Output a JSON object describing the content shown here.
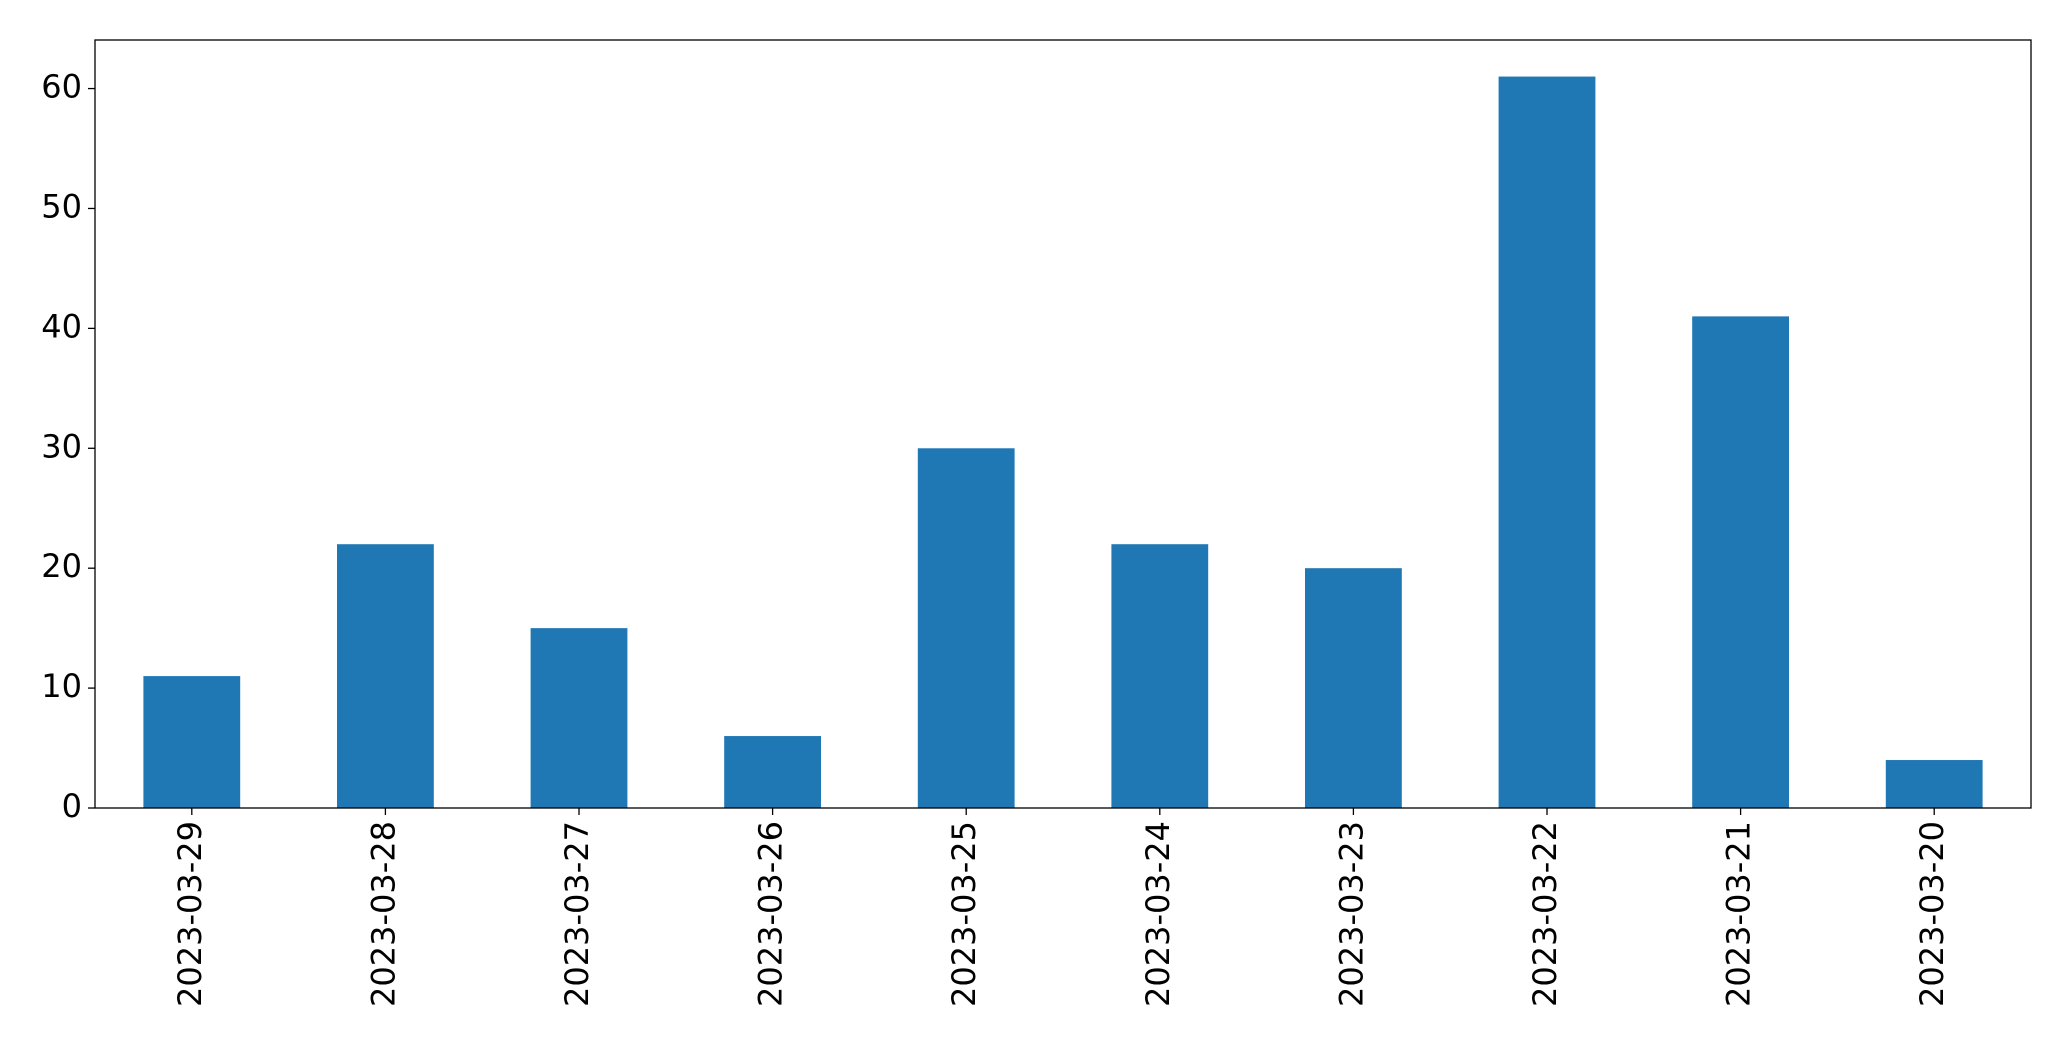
{
  "chart_data": {
    "type": "bar",
    "categories": [
      "2023-03-29",
      "2023-03-28",
      "2023-03-27",
      "2023-03-26",
      "2023-03-25",
      "2023-03-24",
      "2023-03-23",
      "2023-03-22",
      "2023-03-21",
      "2023-03-20"
    ],
    "values": [
      11,
      22,
      15,
      6,
      30,
      22,
      20,
      61,
      41,
      4
    ],
    "color": "#1f77b4",
    "ylim": [
      0,
      64.05
    ],
    "yticks": [
      0,
      10,
      20,
      30,
      40,
      50,
      60
    ],
    "grid": false
  }
}
